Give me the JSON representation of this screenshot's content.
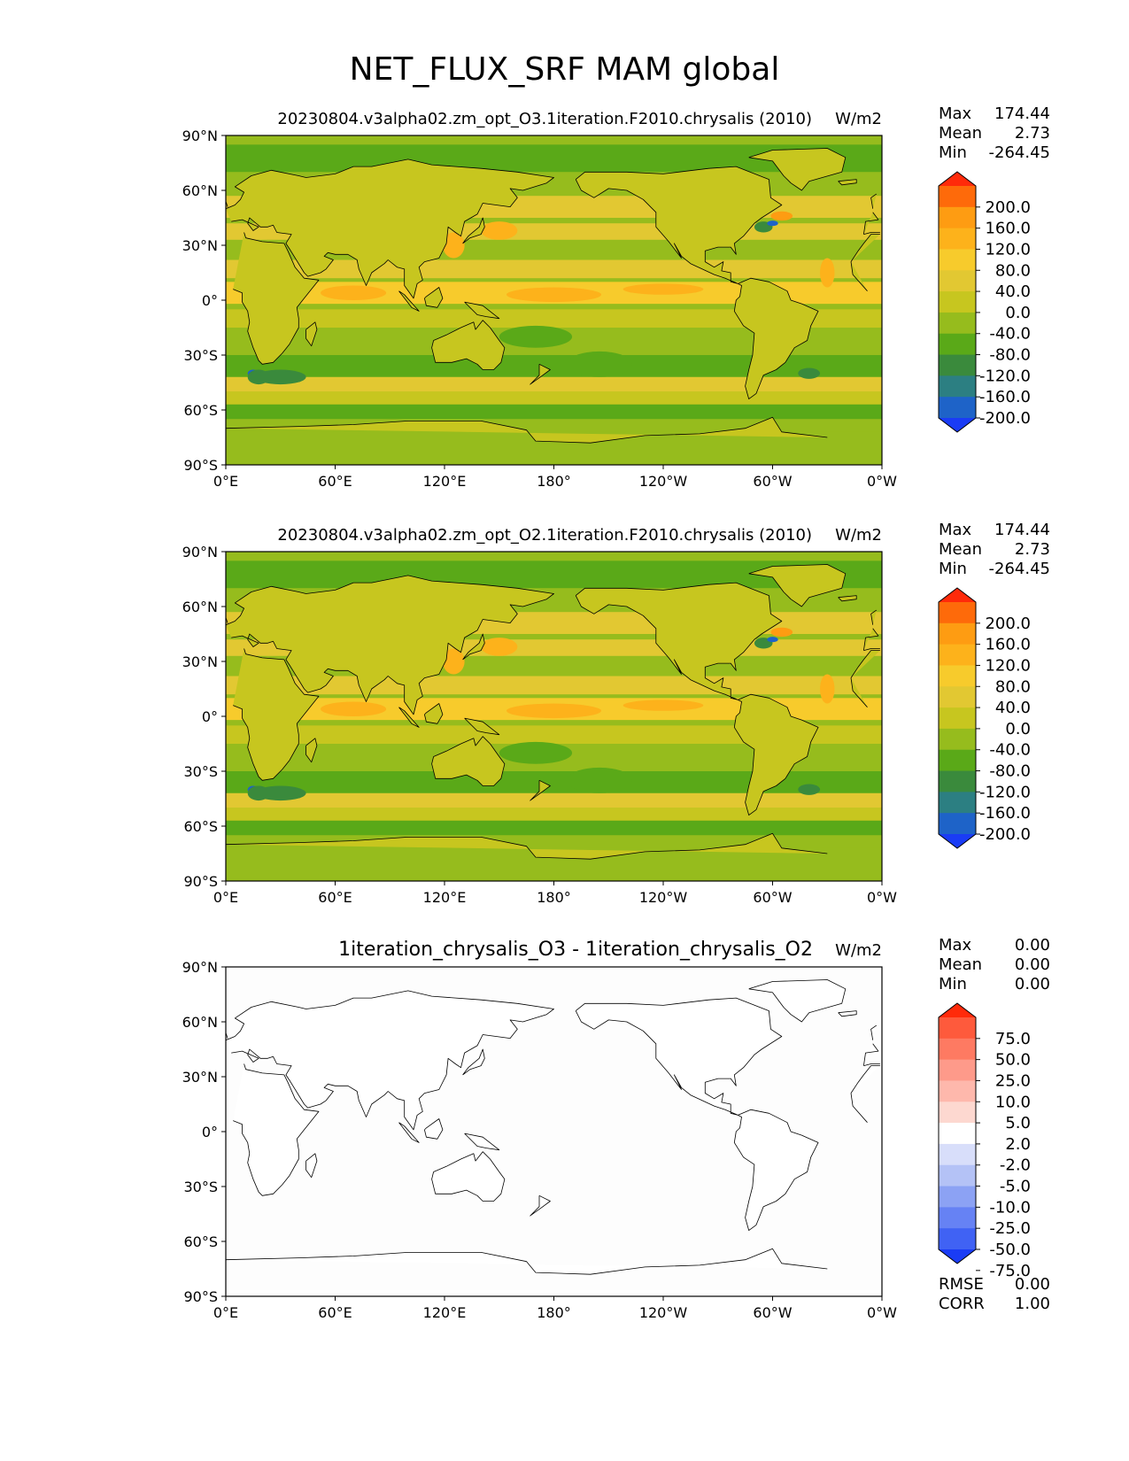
{
  "figure": {
    "title": "NET_FLUX_SRF MAM global"
  },
  "axes": {
    "lat_ticks": [
      "90°N",
      "60°N",
      "30°N",
      "0°",
      "30°S",
      "60°S",
      "90°S"
    ],
    "lon_ticks": [
      "0°E",
      "60°E",
      "120°E",
      "180°",
      "120°W",
      "60°W",
      "0°W"
    ]
  },
  "panels": [
    {
      "title": "20230804.v3alpha02.zm_opt_O3.1iteration.F2010.chrysalis (2010)",
      "units": "W/m2",
      "stats": [
        {
          "label": "Max",
          "value": "174.44"
        },
        {
          "label": "Mean",
          "value": "2.73"
        },
        {
          "label": "Min",
          "value": "-264.45"
        }
      ],
      "colorbar": {
        "labels": [
          "200.0",
          "160.0",
          "120.0",
          "80.0",
          "40.0",
          "0.0",
          "-40.0",
          "-80.0",
          "-120.0",
          "-160.0",
          "-200.0"
        ],
        "colors": [
          "#ff2a0a",
          "#fe6a0a",
          "#fe9c12",
          "#fdb21b",
          "#f7cb2c",
          "#e2c832",
          "#c7c61f",
          "#96bc1d",
          "#5aa918",
          "#3a8a3c",
          "#2c7f82",
          "#1e63c8",
          "#1a3cf5"
        ]
      }
    },
    {
      "title": "20230804.v3alpha02.zm_opt_O2.1iteration.F2010.chrysalis (2010)",
      "units": "W/m2",
      "stats": [
        {
          "label": "Max",
          "value": "174.44"
        },
        {
          "label": "Mean",
          "value": "2.73"
        },
        {
          "label": "Min",
          "value": "-264.45"
        }
      ],
      "colorbar": {
        "labels": [
          "200.0",
          "160.0",
          "120.0",
          "80.0",
          "40.0",
          "0.0",
          "-40.0",
          "-80.0",
          "-120.0",
          "-160.0",
          "-200.0"
        ],
        "colors": [
          "#ff2a0a",
          "#fe6a0a",
          "#fe9c12",
          "#fdb21b",
          "#f7cb2c",
          "#e2c832",
          "#c7c61f",
          "#96bc1d",
          "#5aa918",
          "#3a8a3c",
          "#2c7f82",
          "#1e63c8",
          "#1a3cf5"
        ]
      }
    },
    {
      "title": "1iteration_chrysalis_O3 - 1iteration_chrysalis_O2",
      "units": "W/m2",
      "stats": [
        {
          "label": "Max",
          "value": "0.00"
        },
        {
          "label": "Mean",
          "value": "0.00"
        },
        {
          "label": "Min",
          "value": "0.00"
        }
      ],
      "extra_stats": [
        {
          "label": "RMSE",
          "value": "0.00"
        },
        {
          "label": "CORR",
          "value": "1.00"
        }
      ],
      "colorbar": {
        "labels": [
          "75.0",
          "50.0",
          "25.0",
          "10.0",
          "5.0",
          "2.0",
          "-2.0",
          "-5.0",
          "-10.0",
          "-25.0",
          "-50.0",
          "-75.0"
        ],
        "colors": [
          "#ff2a0a",
          "#fe5a3c",
          "#fe7a62",
          "#fe9a8a",
          "#feb8ac",
          "#fdd8d0",
          "#ffffff",
          "#d8defa",
          "#b4c2f6",
          "#8ca2f4",
          "#6682f4",
          "#4062f4",
          "#1a3cf5"
        ]
      }
    }
  ]
}
